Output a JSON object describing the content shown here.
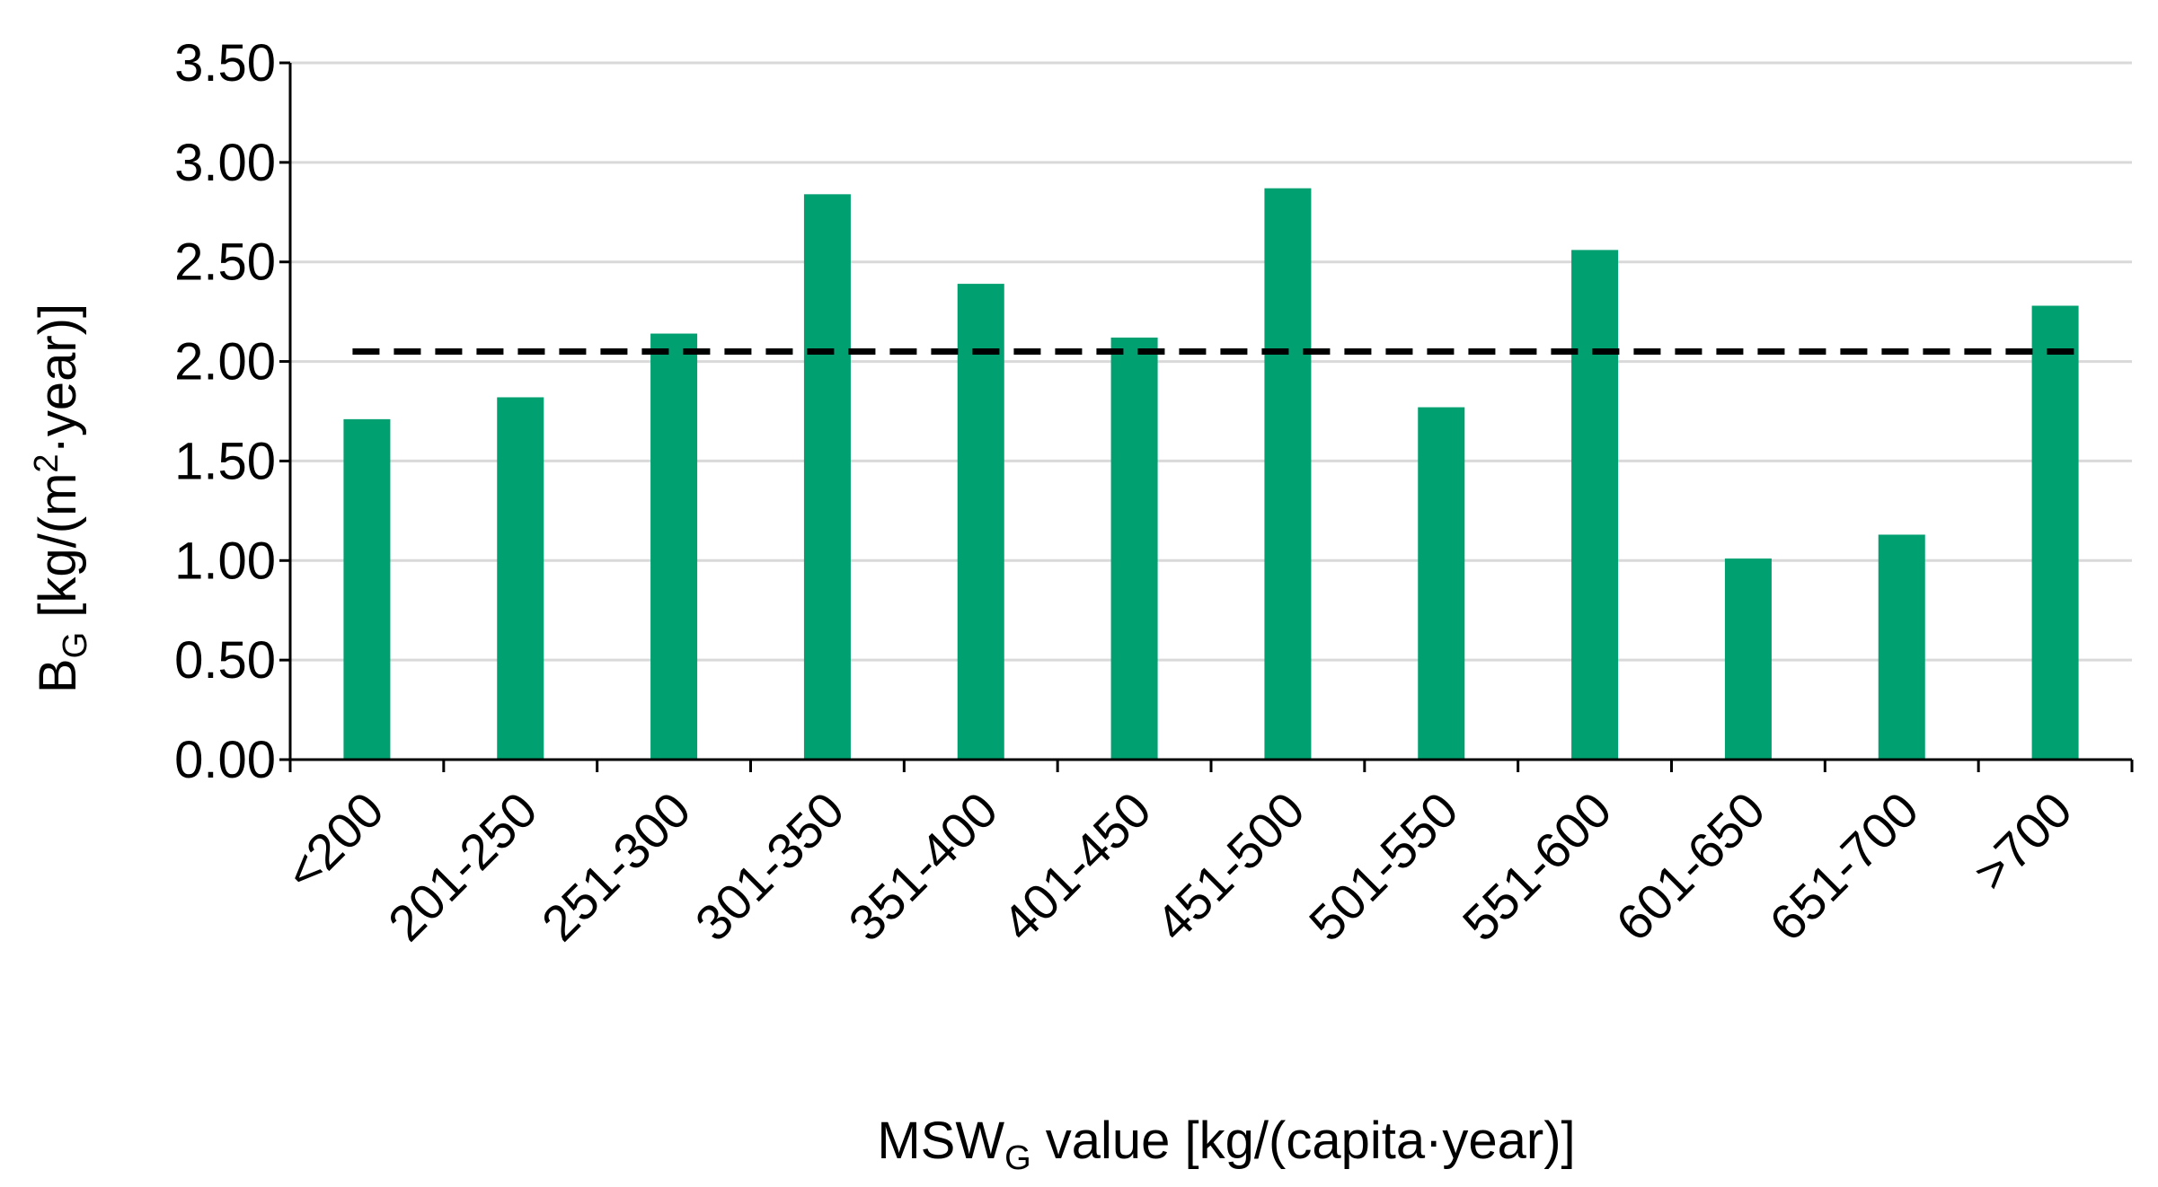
{
  "chart_data": {
    "type": "bar",
    "title": "",
    "categories": [
      "<200",
      "201-250",
      "251-300",
      "301-350",
      "351-400",
      "401-450",
      "451-500",
      "501-550",
      "551-600",
      "601-650",
      "651-700",
      ">700"
    ],
    "series": [
      {
        "name": "B_G",
        "values": [
          1.71,
          1.82,
          2.14,
          2.84,
          2.39,
          2.12,
          2.87,
          1.77,
          2.56,
          1.01,
          1.13,
          2.28
        ]
      }
    ],
    "reference_line": {
      "value": 2.05,
      "style": "dashed"
    },
    "ylim": [
      0,
      3.5
    ],
    "yticks": [
      "0.00",
      "0.50",
      "1.00",
      "1.50",
      "2.00",
      "2.50",
      "3.00",
      "3.50"
    ],
    "grid": true,
    "legend": "none",
    "xlabel": {
      "main": "MSW",
      "sub": "G",
      "rest": " value [kg/(capita·year)]"
    },
    "ylabel": {
      "main": "B",
      "sub": "G",
      "mid": " [kg/(m",
      "sup": "2",
      "rest": "·year)]"
    },
    "colors": {
      "bar": "#00A070",
      "grid": "#D9D9D9",
      "axis": "#000000",
      "reference": "#000000"
    }
  }
}
